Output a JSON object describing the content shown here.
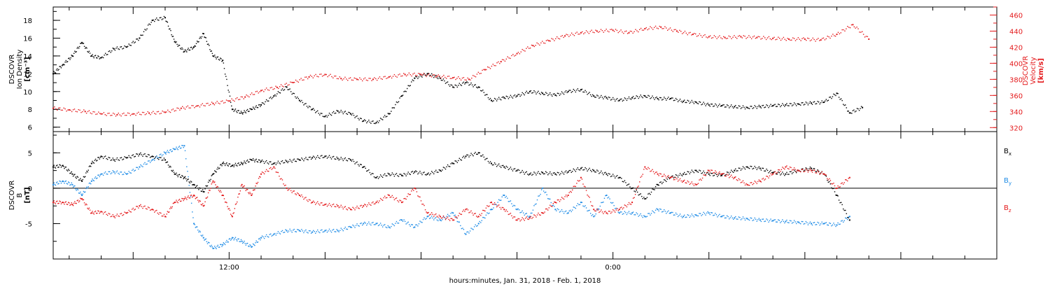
{
  "colors": {
    "black": "#000000",
    "red": "#e41a1c",
    "blue": "#1f8ce6"
  },
  "xlabel": "hours:minutes, Jan. 31, 2018 - Feb.  1, 2018",
  "chart_data": [
    {
      "type": "scatter",
      "panel": "top",
      "x_axis": {
        "unit": "hours since 2018-01-31 00:00 (axis shows hours:minutes)",
        "range": [
          6.5,
          36.0
        ],
        "tick_labels": [
          {
            "value": 12,
            "label": "12:00"
          },
          {
            "value": 24,
            "label": "0:00"
          }
        ]
      },
      "left_axis": {
        "label_lines": [
          "DSCOVR",
          "Ion Density",
          "[cm⁻³]"
        ],
        "range": [
          5.5,
          19.5
        ],
        "ticks": [
          6,
          8,
          10,
          12,
          14,
          16,
          18
        ]
      },
      "right_axis": {
        "label_lines": [
          "DSCOVR",
          "Velocity",
          "[km/s]"
        ],
        "range": [
          315,
          470
        ],
        "ticks": [
          320,
          340,
          360,
          380,
          400,
          420,
          440,
          460
        ]
      },
      "series": [
        {
          "name": "Ion Density",
          "axis": "left",
          "color": "#000000",
          "x": [
            6.5,
            6.8,
            7.1,
            7.4,
            7.7,
            8.0,
            8.4,
            8.8,
            9.2,
            9.6,
            10.0,
            10.3,
            10.6,
            10.9,
            11.2,
            11.5,
            11.8,
            12.1,
            12.4,
            12.7,
            13.0,
            13.4,
            13.8,
            14.2,
            14.6,
            15.0,
            15.4,
            15.8,
            16.2,
            16.6,
            17.0,
            17.4,
            17.8,
            18.2,
            18.6,
            19.0,
            19.4,
            19.8,
            20.2,
            20.6,
            21.0,
            21.4,
            21.8,
            22.2,
            22.6,
            23.0,
            23.4,
            23.8,
            24.2,
            24.6,
            25.0,
            25.4,
            25.8,
            26.2,
            26.6,
            27.0,
            27.4,
            27.8,
            28.2,
            28.6,
            29.0,
            29.4,
            29.8,
            30.2,
            30.6,
            31.0,
            31.4,
            31.8
          ],
          "values": [
            12.0,
            13.0,
            14.0,
            15.5,
            14.0,
            13.8,
            14.8,
            15.0,
            16.0,
            18.0,
            18.3,
            15.6,
            14.5,
            15.0,
            16.5,
            14.0,
            13.5,
            8.0,
            7.6,
            8.0,
            8.5,
            9.5,
            10.5,
            9.0,
            8.0,
            7.2,
            7.8,
            7.5,
            6.7,
            6.5,
            7.5,
            9.5,
            11.5,
            12.0,
            11.5,
            10.5,
            11.0,
            10.5,
            9.0,
            9.3,
            9.5,
            10.0,
            9.8,
            9.6,
            10.0,
            10.2,
            9.5,
            9.3,
            9.0,
            9.3,
            9.5,
            9.2,
            9.2,
            8.9,
            8.8,
            8.5,
            8.4,
            8.3,
            8.2,
            8.3,
            8.4,
            8.5,
            8.6,
            8.7,
            8.8,
            9.8,
            7.6,
            8.2
          ]
        },
        {
          "name": "Velocity",
          "axis": "right",
          "color": "#e41a1c",
          "x": [
            6.5,
            7.0,
            7.5,
            8.0,
            8.5,
            9.0,
            9.5,
            10.0,
            10.5,
            11.0,
            11.5,
            12.0,
            12.5,
            13.0,
            13.5,
            14.0,
            14.5,
            15.0,
            15.5,
            16.0,
            16.5,
            17.0,
            17.5,
            18.0,
            18.5,
            19.0,
            19.5,
            20.0,
            20.5,
            21.0,
            21.5,
            22.0,
            22.5,
            23.0,
            23.5,
            24.0,
            24.5,
            25.0,
            25.5,
            26.0,
            26.5,
            27.0,
            27.5,
            28.0,
            28.5,
            29.0,
            29.5,
            30.0,
            30.5,
            31.0,
            31.5,
            32.0
          ],
          "values": [
            344,
            342,
            340,
            337,
            336,
            337,
            338,
            339,
            344,
            347,
            350,
            353,
            358,
            366,
            370,
            376,
            383,
            386,
            381,
            380,
            380,
            383,
            386,
            386,
            384,
            382,
            380,
            392,
            402,
            412,
            422,
            428,
            434,
            438,
            440,
            441,
            438,
            443,
            445,
            440,
            436,
            433,
            432,
            433,
            432,
            431,
            430,
            430,
            429,
            436,
            448,
            430
          ]
        }
      ]
    },
    {
      "type": "scatter",
      "panel": "bottom",
      "x_axis": {
        "unit": "hours since 2018-01-31 00:00 (axis shows hours:minutes)",
        "range": [
          6.5,
          36.0
        ],
        "tick_labels": [
          {
            "value": 12,
            "label": "12:00"
          },
          {
            "value": 24,
            "label": "0:00"
          }
        ]
      },
      "left_axis": {
        "label_lines": [
          "DSCOVR",
          "B",
          "[nT]"
        ],
        "range": [
          -10.0,
          8.0
        ],
        "ticks": [
          -5,
          0,
          5
        ],
        "zero_line": true
      },
      "legend": {
        "placement": "right",
        "entries": [
          {
            "base": "B",
            "sub": "x",
            "color": "#000000"
          },
          {
            "base": "B",
            "sub": "y",
            "color": "#1f8ce6"
          },
          {
            "base": "B",
            "sub": "z",
            "color": "#e41a1c"
          }
        ]
      },
      "series": [
        {
          "name": "Bx",
          "color": "#000000",
          "x": [
            6.5,
            6.8,
            7.1,
            7.4,
            7.7,
            8.0,
            8.4,
            8.8,
            9.2,
            9.6,
            10.0,
            10.3,
            10.6,
            10.9,
            11.2,
            11.5,
            11.8,
            12.1,
            12.4,
            12.7,
            13.0,
            13.4,
            13.8,
            14.2,
            14.6,
            15.0,
            15.4,
            15.8,
            16.2,
            16.6,
            17.0,
            17.4,
            17.8,
            18.2,
            18.6,
            19.0,
            19.4,
            19.8,
            20.2,
            20.6,
            21.0,
            21.4,
            21.8,
            22.2,
            22.6,
            23.0,
            23.4,
            23.8,
            24.2,
            24.6,
            25.0,
            25.4,
            25.8,
            26.2,
            26.6,
            27.0,
            27.4,
            27.8,
            28.2,
            28.6,
            29.0,
            29.4,
            29.8,
            30.2,
            30.6,
            31.0,
            31.4
          ],
          "values": [
            3.0,
            3.2,
            2.0,
            1.0,
            3.5,
            4.5,
            4.0,
            4.3,
            4.8,
            4.5,
            4.0,
            2.0,
            1.5,
            0.5,
            -0.5,
            2.0,
            3.5,
            3.2,
            3.5,
            4.0,
            3.8,
            3.5,
            3.8,
            4.0,
            4.3,
            4.5,
            4.2,
            4.0,
            3.0,
            1.5,
            2.0,
            1.8,
            2.3,
            2.0,
            2.5,
            3.5,
            4.5,
            5.0,
            3.5,
            3.0,
            2.5,
            2.0,
            2.2,
            2.0,
            2.3,
            2.8,
            2.5,
            2.0,
            1.5,
            0.0,
            -1.5,
            0.5,
            1.5,
            2.0,
            2.5,
            2.0,
            1.8,
            2.5,
            3.0,
            2.8,
            2.2,
            2.0,
            2.5,
            2.8,
            2.0,
            -1.0,
            -4.5
          ]
        },
        {
          "name": "By",
          "color": "#1f8ce6",
          "x": [
            6.5,
            6.8,
            7.1,
            7.4,
            7.7,
            8.0,
            8.4,
            8.8,
            9.2,
            9.6,
            10.0,
            10.3,
            10.6,
            10.9,
            11.2,
            11.5,
            11.8,
            12.1,
            12.4,
            12.7,
            13.0,
            13.4,
            13.8,
            14.2,
            14.6,
            15.0,
            15.4,
            15.8,
            16.2,
            16.6,
            17.0,
            17.4,
            17.8,
            18.2,
            18.6,
            19.0,
            19.4,
            19.8,
            20.2,
            20.6,
            21.0,
            21.4,
            21.8,
            22.2,
            22.6,
            23.0,
            23.4,
            23.8,
            24.2,
            24.6,
            25.0,
            25.4,
            25.8,
            26.2,
            26.6,
            27.0,
            27.4,
            27.8,
            28.2,
            28.6,
            29.0,
            29.4,
            29.8,
            30.2,
            30.6,
            31.0,
            31.4
          ],
          "values": [
            0.5,
            1.0,
            0.5,
            -1.0,
            1.0,
            2.0,
            2.3,
            2.0,
            3.0,
            4.0,
            5.0,
            5.5,
            6.0,
            -5.0,
            -7.0,
            -8.5,
            -8.0,
            -7.0,
            -7.5,
            -8.3,
            -7.0,
            -6.5,
            -6.0,
            -6.0,
            -6.2,
            -6.0,
            -6.0,
            -5.5,
            -5.0,
            -5.0,
            -5.5,
            -4.5,
            -5.5,
            -4.0,
            -4.5,
            -3.5,
            -6.5,
            -5.0,
            -3.0,
            -1.0,
            -3.0,
            -4.0,
            0.0,
            -3.0,
            -3.5,
            -2.0,
            -4.0,
            -1.0,
            -3.5,
            -3.5,
            -4.0,
            -3.0,
            -3.5,
            -4.0,
            -3.8,
            -3.5,
            -4.0,
            -4.2,
            -4.3,
            -4.5,
            -4.6,
            -4.7,
            -4.8,
            -5.0,
            -5.0,
            -5.2,
            -4.0
          ]
        },
        {
          "name": "Bz",
          "color": "#e41a1c",
          "x": [
            6.5,
            6.8,
            7.1,
            7.4,
            7.7,
            8.0,
            8.4,
            8.8,
            9.2,
            9.6,
            10.0,
            10.3,
            10.6,
            10.9,
            11.2,
            11.5,
            11.8,
            12.1,
            12.4,
            12.7,
            13.0,
            13.4,
            13.8,
            14.2,
            14.6,
            15.0,
            15.4,
            15.8,
            16.2,
            16.6,
            17.0,
            17.4,
            17.8,
            18.2,
            18.6,
            19.0,
            19.4,
            19.8,
            20.2,
            20.6,
            21.0,
            21.4,
            21.8,
            22.2,
            22.6,
            23.0,
            23.4,
            23.8,
            24.2,
            24.6,
            25.0,
            25.4,
            25.8,
            26.2,
            26.6,
            27.0,
            27.4,
            27.8,
            28.2,
            28.6,
            29.0,
            29.4,
            29.8,
            30.2,
            30.6,
            31.0,
            31.4
          ],
          "values": [
            -2.0,
            -2.0,
            -2.3,
            -1.5,
            -3.5,
            -3.3,
            -4.0,
            -3.5,
            -2.5,
            -3.0,
            -4.0,
            -2.0,
            -1.5,
            -1.0,
            -2.5,
            1.0,
            -1.0,
            -4.0,
            0.5,
            -1.0,
            2.0,
            3.0,
            0.0,
            -1.0,
            -2.0,
            -2.3,
            -2.5,
            -3.0,
            -2.5,
            -2.0,
            -1.0,
            -2.0,
            0.0,
            -3.5,
            -4.0,
            -4.5,
            -3.0,
            -4.0,
            -2.0,
            -3.0,
            -4.5,
            -4.2,
            -3.5,
            -2.0,
            -1.0,
            1.5,
            -3.0,
            -3.5,
            -3.0,
            -2.0,
            3.0,
            2.0,
            1.5,
            1.0,
            0.5,
            2.5,
            2.0,
            1.5,
            0.5,
            1.0,
            2.0,
            3.0,
            2.5,
            2.5,
            2.0,
            0.0,
            1.5
          ]
        }
      ]
    }
  ]
}
